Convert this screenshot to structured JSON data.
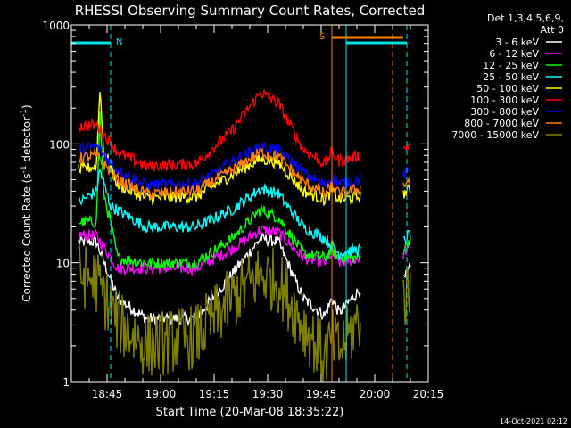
{
  "chart_data": {
    "type": "line",
    "title": "RHESSI Observing Summary Count Rates, Corrected",
    "xlabel": "Start Time (20-Mar-08 18:35:22)",
    "ylabel_main": "Corrected Count Rate (s",
    "ylabel_sup1": "-1",
    "ylabel_mid": " detector",
    "ylabel_sup2": "-1",
    "ylabel_end": ")",
    "yscale": "log",
    "ylim": [
      1,
      1000
    ],
    "xlim": [
      "18:35",
      "20:15"
    ],
    "x_ticks": [
      "18:45",
      "19:00",
      "19:15",
      "19:30",
      "19:45",
      "20:00",
      "20:15"
    ],
    "y_ticks": [
      "1",
      "10",
      "100",
      "1000"
    ],
    "legend_header": [
      "Det 1,3,4,5,6,9,",
      "Att 0"
    ],
    "legend_position": "right",
    "footer_date": "14-Oct-2021 02:12",
    "markers": {
      "night_label": "N",
      "saa_label": "S",
      "night_color": "#00e0e0",
      "saa_color": "#ff8000",
      "night_bars": [
        [
          "18:35",
          "18:46"
        ],
        [
          "19:52",
          "20:09"
        ]
      ],
      "night_dashed": [
        "18:46",
        "20:09"
      ],
      "night_solid": [
        "18:35",
        "19:52"
      ],
      "saa_bar": [
        "19:48",
        "20:08"
      ],
      "saa_solid": "19:48",
      "saa_dashed": "20:05"
    },
    "segments": [
      [
        "18:37",
        "19:56"
      ],
      [
        "20:08",
        "20:10"
      ]
    ],
    "series": [
      {
        "name": "3 - 6 keV",
        "color": "#ffffff",
        "points": [
          [
            "18:37",
            15
          ],
          [
            "18:42",
            15
          ],
          [
            "18:48",
            5
          ],
          [
            "18:56",
            3.4
          ],
          [
            "19:10",
            3.4
          ],
          [
            "19:20",
            8
          ],
          [
            "19:28",
            16
          ],
          [
            "19:33",
            15
          ],
          [
            "19:40",
            5
          ],
          [
            "19:46",
            3.6
          ],
          [
            "19:48",
            5
          ],
          [
            "19:50",
            3.8
          ],
          [
            "19:56",
            6
          ],
          [
            "20:08",
            7
          ],
          [
            "20:10",
            9
          ]
        ]
      },
      {
        "name": "6 - 12 keV",
        "color": "#ff00ff",
        "points": [
          [
            "18:37",
            17
          ],
          [
            "18:42",
            17
          ],
          [
            "18:48",
            9
          ],
          [
            "18:56",
            9
          ],
          [
            "19:10",
            9
          ],
          [
            "19:20",
            13
          ],
          [
            "19:28",
            19
          ],
          [
            "19:33",
            18
          ],
          [
            "19:40",
            11
          ],
          [
            "19:46",
            10
          ],
          [
            "19:48",
            12
          ],
          [
            "19:50",
            10
          ],
          [
            "19:56",
            11
          ],
          [
            "20:08",
            12
          ],
          [
            "20:10",
            14
          ]
        ]
      },
      {
        "name": "12 - 25 keV",
        "color": "#00ff00",
        "points": [
          [
            "18:37",
            22
          ],
          [
            "18:42",
            22
          ],
          [
            "18:43",
            180
          ],
          [
            "18:44",
            40
          ],
          [
            "18:48",
            11
          ],
          [
            "18:56",
            10
          ],
          [
            "19:10",
            10
          ],
          [
            "19:20",
            16
          ],
          [
            "19:28",
            28
          ],
          [
            "19:33",
            24
          ],
          [
            "19:40",
            12
          ],
          [
            "19:46",
            11
          ],
          [
            "19:48",
            13
          ],
          [
            "19:50",
            11
          ],
          [
            "19:56",
            11
          ],
          [
            "20:08",
            13
          ],
          [
            "20:10",
            16
          ]
        ]
      },
      {
        "name": "25 - 50 keV",
        "color": "#00ffff",
        "points": [
          [
            "18:37",
            32
          ],
          [
            "18:42",
            40
          ],
          [
            "18:43",
            60
          ],
          [
            "18:46",
            30
          ],
          [
            "18:56",
            20
          ],
          [
            "19:10",
            20
          ],
          [
            "19:20",
            28
          ],
          [
            "19:28",
            42
          ],
          [
            "19:33",
            38
          ],
          [
            "19:40",
            20
          ],
          [
            "19:46",
            16
          ],
          [
            "19:48",
            14
          ],
          [
            "19:50",
            12
          ],
          [
            "19:56",
            13
          ],
          [
            "20:08",
            15
          ],
          [
            "20:10",
            18
          ]
        ]
      },
      {
        "name": "50 - 100 keV",
        "color": "#ffff00",
        "points": [
          [
            "18:37",
            60
          ],
          [
            "18:42",
            65
          ],
          [
            "18:43",
            300
          ],
          [
            "18:44",
            90
          ],
          [
            "18:48",
            45
          ],
          [
            "18:56",
            35
          ],
          [
            "19:10",
            36
          ],
          [
            "19:20",
            55
          ],
          [
            "19:28",
            75
          ],
          [
            "19:33",
            70
          ],
          [
            "19:40",
            40
          ],
          [
            "19:46",
            34
          ],
          [
            "19:48",
            40
          ],
          [
            "19:50",
            34
          ],
          [
            "19:56",
            36
          ],
          [
            "20:08",
            38
          ],
          [
            "20:10",
            42
          ]
        ]
      },
      {
        "name": "100 - 300 keV",
        "color": "#ff0000",
        "points": [
          [
            "18:37",
            140
          ],
          [
            "18:42",
            145
          ],
          [
            "18:48",
            85
          ],
          [
            "18:56",
            65
          ],
          [
            "19:10",
            68
          ],
          [
            "19:20",
            130
          ],
          [
            "19:28",
            270
          ],
          [
            "19:33",
            220
          ],
          [
            "19:40",
            90
          ],
          [
            "19:46",
            68
          ],
          [
            "19:48",
            85
          ],
          [
            "19:50",
            72
          ],
          [
            "19:56",
            80
          ],
          [
            "20:08",
            90
          ],
          [
            "20:10",
            100
          ]
        ]
      },
      {
        "name": "300 - 800 keV",
        "color": "#0000ff",
        "points": [
          [
            "18:37",
            90
          ],
          [
            "18:42",
            95
          ],
          [
            "18:48",
            60
          ],
          [
            "18:56",
            45
          ],
          [
            "19:10",
            46
          ],
          [
            "19:20",
            70
          ],
          [
            "19:28",
            95
          ],
          [
            "19:33",
            88
          ],
          [
            "19:40",
            58
          ],
          [
            "19:46",
            45
          ],
          [
            "19:48",
            52
          ],
          [
            "19:50",
            46
          ],
          [
            "19:56",
            50
          ],
          [
            "20:08",
            55
          ],
          [
            "20:10",
            60
          ]
        ]
      },
      {
        "name": "800 - 7000 keV",
        "color": "#ff8000",
        "points": [
          [
            "18:37",
            75
          ],
          [
            "18:42",
            80
          ],
          [
            "18:48",
            50
          ],
          [
            "18:56",
            38
          ],
          [
            "19:10",
            40
          ],
          [
            "19:20",
            60
          ],
          [
            "19:28",
            85
          ],
          [
            "19:33",
            78
          ],
          [
            "19:40",
            48
          ],
          [
            "19:46",
            38
          ],
          [
            "19:48",
            44
          ],
          [
            "19:50",
            38
          ],
          [
            "19:56",
            42
          ],
          [
            "20:08",
            45
          ],
          [
            "20:10",
            50
          ]
        ]
      },
      {
        "name": "7000 - 15000 keV",
        "color": "#808000",
        "points": [
          [
            "18:37",
            8
          ],
          [
            "18:42",
            7
          ],
          [
            "18:48",
            3.2
          ],
          [
            "18:56",
            2.0
          ],
          [
            "19:10",
            2.4
          ],
          [
            "19:20",
            5
          ],
          [
            "19:28",
            8
          ],
          [
            "19:33",
            7
          ],
          [
            "19:40",
            3
          ],
          [
            "19:46",
            1.6
          ],
          [
            "19:48",
            2.2
          ],
          [
            "19:50",
            1.8
          ],
          [
            "19:56",
            3.5
          ],
          [
            "20:08",
            5
          ],
          [
            "20:10",
            6
          ]
        ]
      }
    ]
  }
}
